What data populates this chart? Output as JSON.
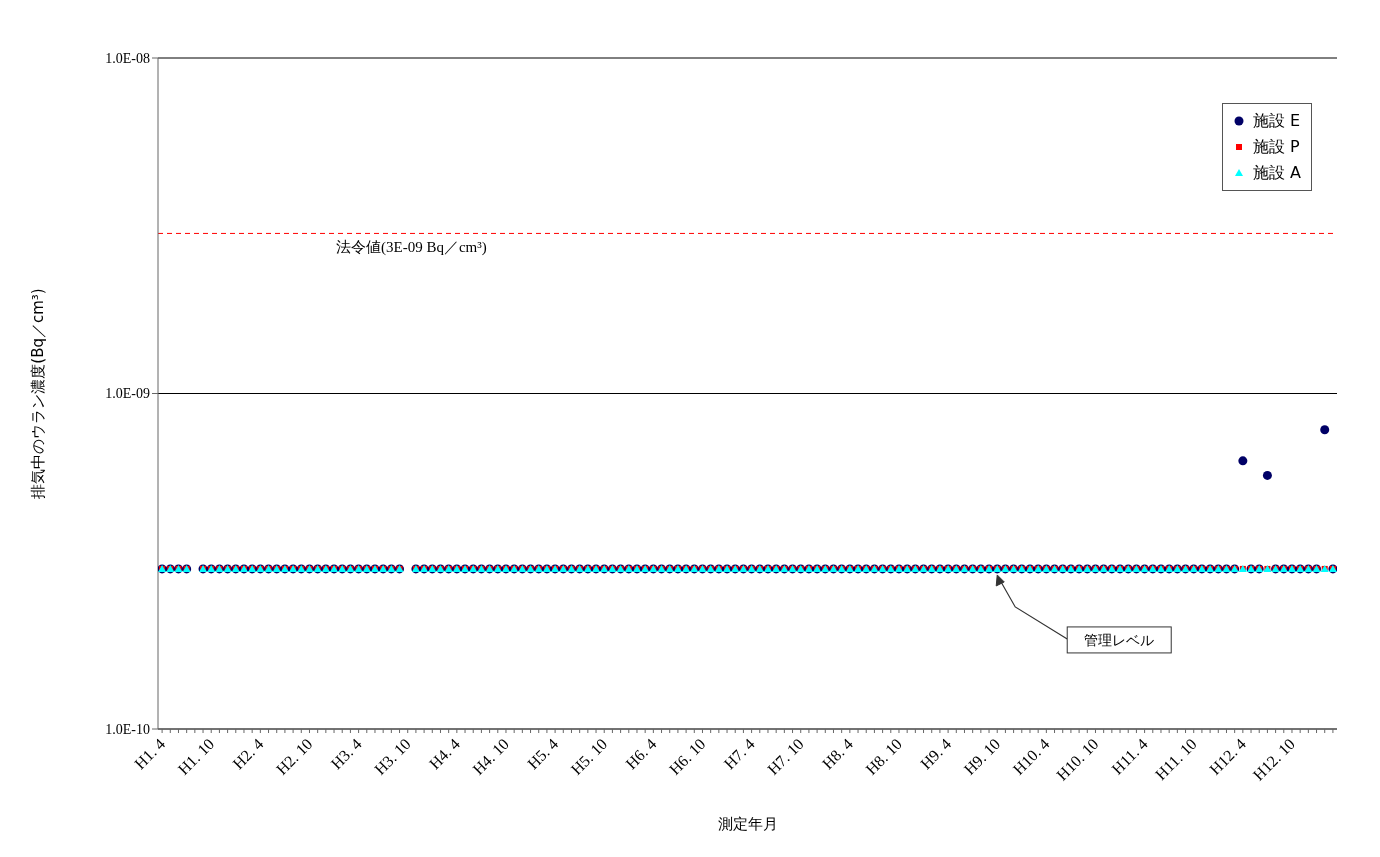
{
  "chart_data": {
    "type": "scatter",
    "xlabel": "測定年月",
    "ylabel": "排気中のウラン濃度(Bq／cm³)",
    "categories": [
      "H1. 4",
      null,
      null,
      null,
      null,
      null,
      "H1. 10",
      null,
      null,
      null,
      null,
      null,
      "H2. 4",
      null,
      null,
      null,
      null,
      null,
      "H2. 10",
      null,
      null,
      null,
      null,
      null,
      "H3. 4",
      null,
      null,
      null,
      null,
      null,
      "H3. 10",
      null,
      null,
      null,
      null,
      null,
      "H4. 4",
      null,
      null,
      null,
      null,
      null,
      "H4. 10",
      null,
      null,
      null,
      null,
      null,
      "H5. 4",
      null,
      null,
      null,
      null,
      null,
      "H5. 10",
      null,
      null,
      null,
      null,
      null,
      "H6. 4",
      null,
      null,
      null,
      null,
      null,
      "H6. 10",
      null,
      null,
      null,
      null,
      null,
      "H7. 4",
      null,
      null,
      null,
      null,
      null,
      "H7. 10",
      null,
      null,
      null,
      null,
      null,
      "H8. 4",
      null,
      null,
      null,
      null,
      null,
      "H8. 10",
      null,
      null,
      null,
      null,
      null,
      "H9. 4",
      null,
      null,
      null,
      null,
      null,
      "H9. 10",
      null,
      null,
      null,
      null,
      null,
      "H10. 4",
      null,
      null,
      null,
      null,
      null,
      "H10. 10",
      null,
      null,
      null,
      null,
      null,
      "H11. 4",
      null,
      null,
      null,
      null,
      null,
      "H11. 10",
      null,
      null,
      null,
      null,
      null,
      "H12. 4",
      null,
      null,
      null,
      null,
      null,
      "H12. 10",
      null,
      null,
      null,
      null,
      null
    ],
    "series": [
      {
        "name": "施設 E",
        "color": "#000066",
        "marker": "circle",
        "values": [
          3e-10,
          3e-10,
          3e-10,
          3e-10,
          null,
          3e-10,
          3e-10,
          3e-10,
          3e-10,
          3e-10,
          3e-10,
          3e-10,
          3e-10,
          3e-10,
          3e-10,
          3e-10,
          3e-10,
          3e-10,
          3e-10,
          3e-10,
          3e-10,
          3e-10,
          3e-10,
          3e-10,
          3e-10,
          3e-10,
          3e-10,
          3e-10,
          3e-10,
          3e-10,
          null,
          3e-10,
          3e-10,
          3e-10,
          3e-10,
          3e-10,
          3e-10,
          3e-10,
          3e-10,
          3e-10,
          3e-10,
          3e-10,
          3e-10,
          3e-10,
          3e-10,
          3e-10,
          3e-10,
          3e-10,
          3e-10,
          3e-10,
          3e-10,
          3e-10,
          3e-10,
          3e-10,
          3e-10,
          3e-10,
          3e-10,
          3e-10,
          3e-10,
          3e-10,
          3e-10,
          3e-10,
          3e-10,
          3e-10,
          3e-10,
          3e-10,
          3e-10,
          3e-10,
          3e-10,
          3e-10,
          3e-10,
          3e-10,
          3e-10,
          3e-10,
          3e-10,
          3e-10,
          3e-10,
          3e-10,
          3e-10,
          3e-10,
          3e-10,
          3e-10,
          3e-10,
          3e-10,
          3e-10,
          3e-10,
          3e-10,
          3e-10,
          3e-10,
          3e-10,
          3e-10,
          3e-10,
          3e-10,
          3e-10,
          3e-10,
          3e-10,
          3e-10,
          3e-10,
          3e-10,
          3e-10,
          3e-10,
          3e-10,
          3e-10,
          3e-10,
          3e-10,
          3e-10,
          3e-10,
          3e-10,
          3e-10,
          3e-10,
          3e-10,
          3e-10,
          3e-10,
          3e-10,
          3e-10,
          3e-10,
          3e-10,
          3e-10,
          3e-10,
          3e-10,
          3e-10,
          3e-10,
          3e-10,
          3e-10,
          3e-10,
          3e-10,
          3e-10,
          3e-10,
          3e-10,
          3e-10,
          3e-10,
          3e-10,
          6.3e-10,
          3e-10,
          3e-10,
          5.7e-10,
          3e-10,
          3e-10,
          3e-10,
          3e-10,
          3e-10,
          3e-10,
          7.8e-10,
          3e-10
        ]
      },
      {
        "name": "施設 P",
        "color": "#ff0000",
        "marker": "square",
        "values": [
          3e-10,
          3e-10,
          3e-10,
          3e-10,
          null,
          3e-10,
          3e-10,
          3e-10,
          3e-10,
          3e-10,
          3e-10,
          3e-10,
          3e-10,
          3e-10,
          3e-10,
          3e-10,
          3e-10,
          3e-10,
          3e-10,
          3e-10,
          3e-10,
          3e-10,
          3e-10,
          3e-10,
          3e-10,
          3e-10,
          3e-10,
          3e-10,
          3e-10,
          3e-10,
          null,
          3e-10,
          3e-10,
          3e-10,
          3e-10,
          3e-10,
          3e-10,
          3e-10,
          3e-10,
          3e-10,
          3e-10,
          3e-10,
          3e-10,
          3e-10,
          3e-10,
          3e-10,
          3e-10,
          3e-10,
          3e-10,
          3e-10,
          3e-10,
          3e-10,
          3e-10,
          3e-10,
          3e-10,
          3e-10,
          3e-10,
          3e-10,
          3e-10,
          3e-10,
          3e-10,
          3e-10,
          3e-10,
          3e-10,
          3e-10,
          3e-10,
          3e-10,
          3e-10,
          3e-10,
          3e-10,
          3e-10,
          3e-10,
          3e-10,
          3e-10,
          3e-10,
          3e-10,
          3e-10,
          3e-10,
          3e-10,
          3e-10,
          3e-10,
          3e-10,
          3e-10,
          3e-10,
          3e-10,
          3e-10,
          3e-10,
          3e-10,
          3e-10,
          3e-10,
          3e-10,
          3e-10,
          3e-10,
          3e-10,
          3e-10,
          3e-10,
          3e-10,
          3e-10,
          3e-10,
          3e-10,
          3e-10,
          3e-10,
          3e-10,
          3e-10,
          3e-10,
          3e-10,
          3e-10,
          3e-10,
          3e-10,
          3e-10,
          3e-10,
          3e-10,
          3e-10,
          3e-10,
          3e-10,
          3e-10,
          3e-10,
          3e-10,
          3e-10,
          3e-10,
          3e-10,
          3e-10,
          3e-10,
          3e-10,
          3e-10,
          3e-10,
          3e-10,
          3e-10,
          3e-10,
          3e-10,
          3e-10,
          3e-10,
          3e-10,
          3e-10,
          3e-10,
          3e-10,
          3e-10,
          3e-10,
          3e-10,
          3e-10,
          3e-10,
          3e-10,
          3e-10,
          3e-10
        ]
      },
      {
        "name": "施設 A",
        "color": "#00ffff",
        "marker": "triangle",
        "values": [
          3e-10,
          3e-10,
          3e-10,
          3e-10,
          null,
          3e-10,
          3e-10,
          3e-10,
          3e-10,
          3e-10,
          3e-10,
          3e-10,
          3e-10,
          3e-10,
          3e-10,
          3e-10,
          3e-10,
          3e-10,
          3e-10,
          3e-10,
          3e-10,
          3e-10,
          3e-10,
          3e-10,
          3e-10,
          3e-10,
          3e-10,
          3e-10,
          3e-10,
          3e-10,
          null,
          3e-10,
          3e-10,
          3e-10,
          3e-10,
          3e-10,
          3e-10,
          3e-10,
          3e-10,
          3e-10,
          3e-10,
          3e-10,
          3e-10,
          3e-10,
          3e-10,
          3e-10,
          3e-10,
          3e-10,
          3e-10,
          3e-10,
          3e-10,
          3e-10,
          3e-10,
          3e-10,
          3e-10,
          3e-10,
          3e-10,
          3e-10,
          3e-10,
          3e-10,
          3e-10,
          3e-10,
          3e-10,
          3e-10,
          3e-10,
          3e-10,
          3e-10,
          3e-10,
          3e-10,
          3e-10,
          3e-10,
          3e-10,
          3e-10,
          3e-10,
          3e-10,
          3e-10,
          3e-10,
          3e-10,
          3e-10,
          3e-10,
          3e-10,
          3e-10,
          3e-10,
          3e-10,
          3e-10,
          3e-10,
          3e-10,
          3e-10,
          3e-10,
          3e-10,
          3e-10,
          3e-10,
          3e-10,
          3e-10,
          3e-10,
          3e-10,
          3e-10,
          3e-10,
          3e-10,
          3e-10,
          3e-10,
          3e-10,
          3e-10,
          3e-10,
          3e-10,
          3e-10,
          3e-10,
          3e-10,
          3e-10,
          3e-10,
          3e-10,
          3e-10,
          3e-10,
          3e-10,
          3e-10,
          3e-10,
          3e-10,
          3e-10,
          3e-10,
          3e-10,
          3e-10,
          3e-10,
          3e-10,
          3e-10,
          3e-10,
          3e-10,
          3e-10,
          3e-10,
          3e-10,
          3e-10,
          3e-10,
          3e-10,
          3e-10,
          3e-10,
          3e-10,
          3e-10,
          3e-10,
          3e-10,
          3e-10,
          3e-10,
          3e-10,
          3e-10,
          3e-10,
          3e-10
        ]
      }
    ],
    "log": "y",
    "ylim": [
      1e-10,
      1e-08
    ],
    "yticks": [
      {
        "value": 1e-10,
        "label": "1.0E-10"
      },
      {
        "value": 1e-09,
        "label": "1.0E-09"
      },
      {
        "value": 1e-08,
        "label": "1.0E-08"
      }
    ],
    "grid": "y",
    "legend": "top right",
    "ref_lines": [
      {
        "axis": "y",
        "value": 3e-09,
        "label": "法令値(3E-09 Bq／cm³)",
        "color": "#ff0000",
        "line_style": "dashed"
      }
    ],
    "annotations": [
      {
        "text": "管理レベル",
        "x": "H9. 10",
        "y": 3e-10
      }
    ]
  }
}
